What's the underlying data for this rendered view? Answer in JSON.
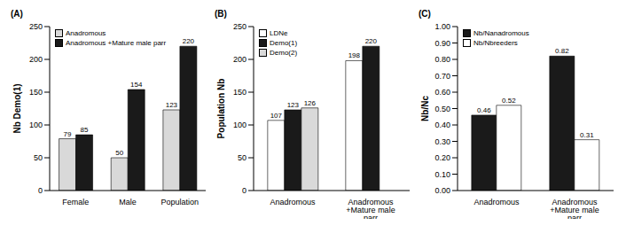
{
  "chart_data": [
    {
      "type": "bar",
      "title": "(A)",
      "y_label": "Nb Demo(1)",
      "categories": [
        "Female",
        "Male",
        "Population"
      ],
      "series": [
        {
          "name": "Anadromous",
          "color": "#d9d9d9",
          "values": [
            79,
            50,
            123
          ]
        },
        {
          "name": "Anadromous +Mature male parr",
          "color": "#1a1a1a",
          "values": [
            85,
            154,
            220
          ]
        }
      ],
      "ylim": [
        0,
        250
      ],
      "yticks": [
        0,
        50,
        100,
        150,
        200,
        250
      ],
      "grid": false,
      "legend": "upper left",
      "data_labels": true
    },
    {
      "type": "bar",
      "title": "(B)",
      "y_label": "Population Nb",
      "categories": [
        "Anadromous",
        "Anadromous +Mature male parr"
      ],
      "series": [
        {
          "name": "LDNe",
          "color": "#ffffff",
          "values": [
            107,
            198
          ]
        },
        {
          "name": "Demo(1)",
          "color": "#1a1a1a",
          "values": [
            123,
            220
          ]
        },
        {
          "name": "Demo(2)",
          "color": "#d9d9d9",
          "values": [
            126,
            null
          ]
        }
      ],
      "ylim": [
        0,
        250
      ],
      "yticks": [
        0,
        50,
        100,
        150,
        200,
        250
      ],
      "grid": false,
      "legend": "upper left",
      "data_labels": true
    },
    {
      "type": "bar",
      "title": "(C)",
      "y_label": "Nb/Nc",
      "categories": [
        "Anadromous",
        "Anadromous +Mature male parr"
      ],
      "series": [
        {
          "name": "Nb/Nanadromous",
          "color": "#1a1a1a",
          "values": [
            0.46,
            0.82
          ]
        },
        {
          "name": "Nb/Nbreeders",
          "color": "#ffffff",
          "values": [
            0.52,
            0.31
          ]
        }
      ],
      "ylim": [
        0,
        1
      ],
      "yticks": [
        {
          "value": 0,
          "label": "0.00"
        },
        {
          "value": 0.1,
          "label": "0.10"
        },
        {
          "value": 0.2,
          "label": "0.20"
        },
        {
          "value": 0.3,
          "label": "0.30"
        },
        {
          "value": 0.4,
          "label": "0.40"
        },
        {
          "value": 0.5,
          "label": "0.50"
        },
        {
          "value": 0.6,
          "label": "0.60"
        },
        {
          "value": 0.7,
          "label": "0.70"
        },
        {
          "value": 0.8,
          "label": "0.80"
        },
        {
          "value": 0.9,
          "label": "0.90"
        },
        {
          "value": 1,
          "label": "1.00"
        }
      ],
      "grid": false,
      "legend": "upper left",
      "data_labels": true
    }
  ]
}
